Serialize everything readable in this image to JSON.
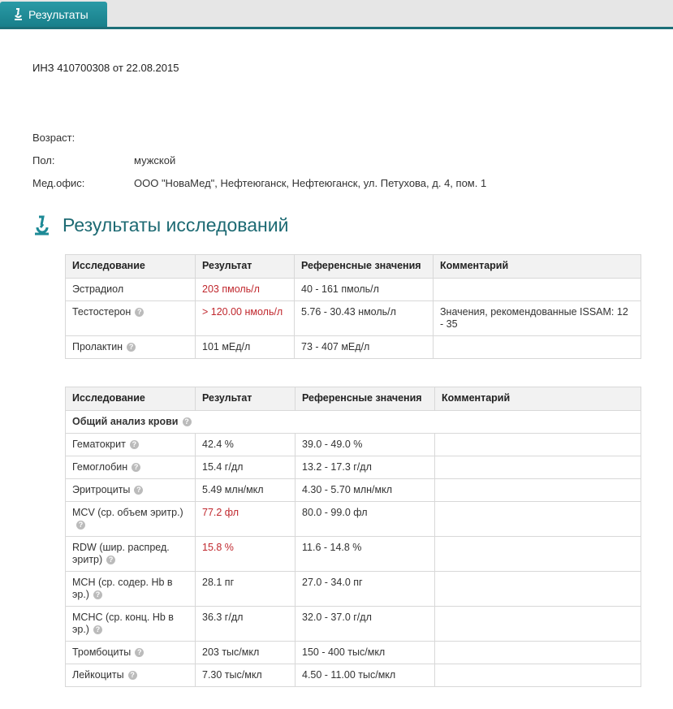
{
  "tab": {
    "label": "Результаты"
  },
  "order": "ИНЗ 410700308 от 22.08.2015",
  "patient": [
    {
      "label": "Возраст:",
      "value": ""
    },
    {
      "label": "Пол:",
      "value": "мужской"
    },
    {
      "label": "Мед.офис:",
      "value": "ООО \"НоваМед\", Нефтеюганск, Нефтеюганск, ул. Петухова, д. 4, пом. 1"
    }
  ],
  "section_title": "Результаты исследований",
  "colors": {
    "accent": "#1d6a73",
    "abnormal": "#c0282e"
  },
  "headers": [
    "Исследование",
    "Результат",
    "Референсные значения",
    "Комментарий"
  ],
  "table1": [
    {
      "name": "Эстрадиол",
      "help": false,
      "result": "203 пмоль/л",
      "abnormal": true,
      "ref": "40 - 161 пмоль/л",
      "comment": ""
    },
    {
      "name": "Тестостерон",
      "help": true,
      "result": "> 120.00 нмоль/л",
      "abnormal": true,
      "ref": "5.76 - 30.43 нмоль/л",
      "comment": "Значения, рекомендованные ISSAM: 12 - 35"
    },
    {
      "name": "Пролактин",
      "help": true,
      "result": "101 мЕд/л",
      "abnormal": false,
      "ref": "73 - 407 мЕд/л",
      "comment": ""
    }
  ],
  "table2_group": "Общий анализ крови",
  "table2": [
    {
      "name": "Гематокрит",
      "result": "42.4 %",
      "abnormal": false,
      "ref": "39.0 - 49.0 %"
    },
    {
      "name": "Гемоглобин",
      "result": "15.4 г/дл",
      "abnormal": false,
      "ref": "13.2 - 17.3 г/дл"
    },
    {
      "name": "Эритроциты",
      "result": "5.49 млн/мкл",
      "abnormal": false,
      "ref": "4.30 - 5.70 млн/мкл"
    },
    {
      "name": "MCV (ср. объем эритр.)",
      "result": "77.2 фл",
      "abnormal": true,
      "ref": "80.0 - 99.0 фл"
    },
    {
      "name": "RDW (шир. распред. эритр)",
      "result": "15.8 %",
      "abnormal": true,
      "ref": "11.6 - 14.8 %"
    },
    {
      "name": "MCH (ср. содер. Hb в эр.)",
      "result": "28.1 пг",
      "abnormal": false,
      "ref": "27.0 - 34.0 пг"
    },
    {
      "name": "MCHC (ср. конц. Hb в эр.)",
      "result": "36.3 г/дл",
      "abnormal": false,
      "ref": "32.0 - 37.0 г/дл"
    },
    {
      "name": "Тромбоциты",
      "result": "203 тыс/мкл",
      "abnormal": false,
      "ref": "150 - 400 тыс/мкл"
    },
    {
      "name": "Лейкоциты",
      "result": "7.30 тыс/мкл",
      "abnormal": false,
      "ref": "4.50 - 11.00 тыс/мкл"
    }
  ]
}
